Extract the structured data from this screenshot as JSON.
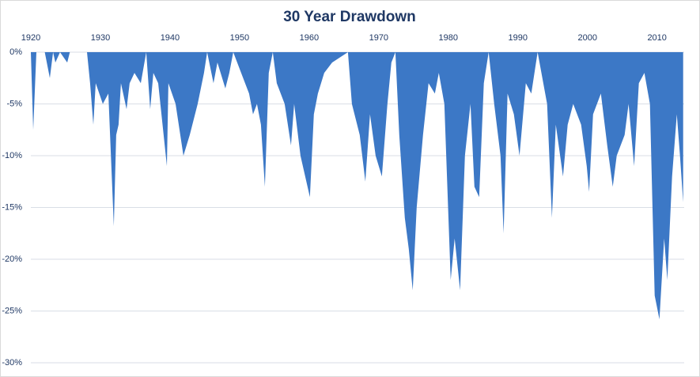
{
  "chart_data": {
    "type": "area",
    "title": "30 Year Drawdown",
    "color": "#3c78c6",
    "x": [
      1920.0,
      1920.34,
      1920.8,
      1922.0,
      1922.73,
      1923.2,
      1923.52,
      1924.2,
      1925.23,
      1925.6,
      1928.07,
      1928.52,
      1928.98,
      1929.32,
      1930.34,
      1931.14,
      1931.93,
      1932.27,
      1932.61,
      1932.95,
      1933.75,
      1934.2,
      1934.89,
      1935.8,
      1936.59,
      1937.16,
      1937.61,
      1938.3,
      1939.55,
      1939.77,
      1940.8,
      1941.93,
      1942.84,
      1943.98,
      1944.89,
      1945.34,
      1946.25,
      1946.82,
      1947.95,
      1948.52,
      1949.09,
      1950.23,
      1951.36,
      1951.93,
      1952.5,
      1953.07,
      1953.64,
      1954.2,
      1954.77,
      1955.34,
      1956.48,
      1957.39,
      1957.84,
      1958.75,
      1960.11,
      1960.68,
      1961.25,
      1962.16,
      1963.3,
      1964.43,
      1965.57,
      1966.14,
      1967.27,
      1968.07,
      1968.75,
      1969.55,
      1970.45,
      1971.25,
      1971.82,
      1972.39,
      1972.95,
      1973.75,
      1974.32,
      1974.89,
      1975.45,
      1976.36,
      1977.16,
      1978.07,
      1978.64,
      1979.43,
      1980.34,
      1980.91,
      1981.7,
      1982.39,
      1983.18,
      1983.75,
      1984.43,
      1985.11,
      1985.8,
      1986.59,
      1987.5,
      1987.95,
      1988.52,
      1989.43,
      1990.23,
      1991.14,
      1991.93,
      1992.84,
      1994.2,
      1994.89,
      1995.45,
      1996.48,
      1997.16,
      1997.95,
      1999.09,
      1999.89,
      2000.23,
      2000.8,
      2001.93,
      2002.84,
      2003.64,
      2004.2,
      2005.34,
      2005.91,
      2006.7,
      2007.39,
      2008.18,
      2008.98,
      2009.66,
      2010.34,
      2011.02,
      2011.48,
      2012.16,
      2012.84,
      2013.3,
      2013.75
    ],
    "values": [
      0,
      -7.5,
      0,
      0,
      -2.5,
      0,
      -1,
      0,
      -1,
      0,
      0,
      -3,
      -7,
      -3,
      -5,
      -4,
      -16.8,
      -8,
      -7,
      -3,
      -5.5,
      -3,
      -2,
      -3,
      0,
      -5.5,
      -2,
      -3,
      -11,
      -3,
      -5,
      -10,
      -8,
      -5,
      -2,
      0,
      -3,
      -1,
      -3.5,
      -2,
      0,
      -2,
      -4,
      -6,
      -5,
      -7,
      -13,
      -2,
      0,
      -3,
      -5,
      -9,
      -5,
      -10,
      -14,
      -6,
      -4,
      -2,
      -1,
      -0.5,
      0,
      -5,
      -8,
      -12.5,
      -6,
      -10,
      -12,
      -5,
      -1,
      0,
      -8,
      -16,
      -19,
      -23,
      -15,
      -8,
      -3,
      -4,
      -2,
      -5,
      -22,
      -18,
      -23,
      -10,
      -5,
      -13,
      -14,
      -3,
      0,
      -5,
      -10,
      -17.5,
      -4,
      -6,
      -10,
      -3,
      -4,
      0,
      -5,
      -16,
      -7,
      -12,
      -7,
      -5,
      -7,
      -11,
      -13.5,
      -6,
      -4,
      -9,
      -13,
      -10,
      -8,
      -5,
      -11,
      -3,
      -2,
      -5,
      -23.5,
      -25.8,
      -18,
      -22,
      -12,
      -6,
      -10,
      -14.5
    ],
    "xlim": [
      1920,
      2013.9
    ],
    "xticks": [
      1920,
      1930,
      1940,
      1950,
      1960,
      1970,
      1980,
      1990,
      2000,
      2010
    ],
    "ylim": [
      -30,
      0
    ],
    "yticks": [
      {
        "value": 0,
        "label": "0%"
      },
      {
        "value": -5,
        "label": "-5%"
      },
      {
        "value": -10,
        "label": "-10%"
      },
      {
        "value": -15,
        "label": "-15%"
      },
      {
        "value": -20,
        "label": "-20%"
      },
      {
        "value": -25,
        "label": "-25%"
      },
      {
        "value": -30,
        "label": "-30%"
      }
    ],
    "grid": true
  }
}
